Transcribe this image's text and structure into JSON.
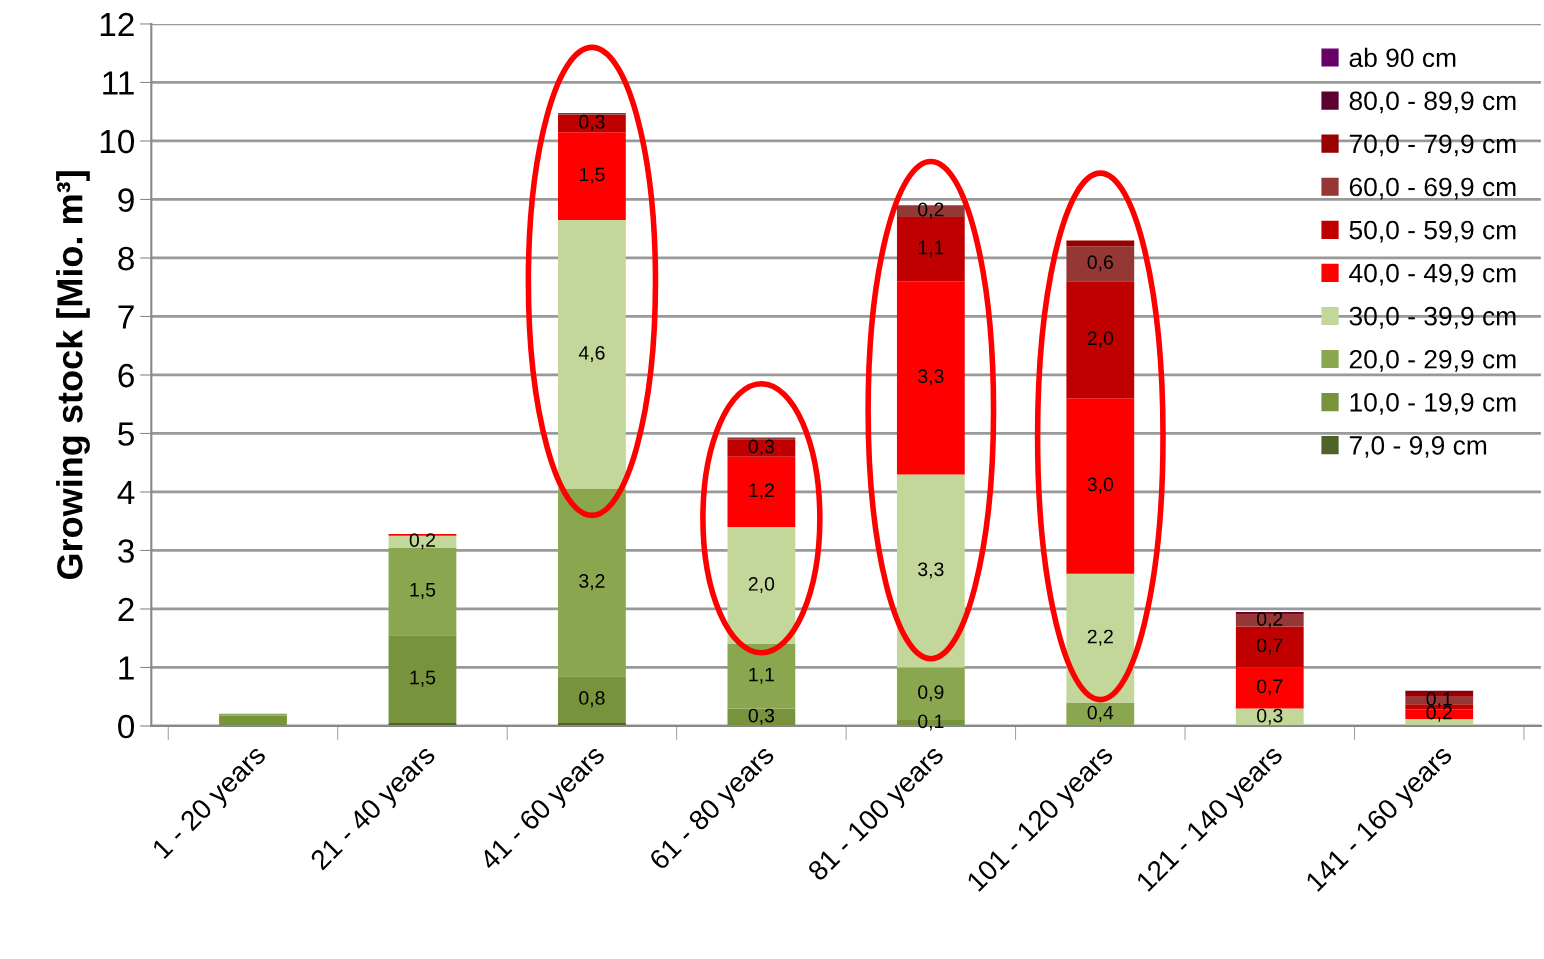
{
  "chart_data": {
    "type": "bar",
    "stacked": true,
    "ylabel": "Growing stock [Mio. m³]",
    "categories": [
      "1 - 20 years",
      "21 - 40 years",
      "41 - 60 years",
      "61 - 80 years",
      "81 - 100 years",
      "101 - 120 years",
      "121 - 140 years",
      "141 - 160 years"
    ],
    "ylim": [
      0,
      12
    ],
    "yticks": [
      0,
      1,
      2,
      3,
      4,
      5,
      6,
      7,
      8,
      9,
      10,
      11,
      12
    ],
    "grid": "y",
    "legend": "top right",
    "series": [
      {
        "name": "7,0 - 9,9 cm",
        "color": "#4f6228",
        "values": [
          0,
          0.05,
          0.05,
          0,
          0,
          0,
          0,
          0
        ]
      },
      {
        "name": "10,0 - 19,9 cm",
        "color": "#77933c",
        "values": [
          0.18,
          1.5,
          0.8,
          0.3,
          0.1,
          0,
          0,
          0
        ],
        "value_labels": [
          null,
          "1,5",
          "0,8",
          "0,3",
          "0,1",
          null,
          null,
          null
        ]
      },
      {
        "name": "20,0 - 29,9 cm",
        "color": "#8aa64f",
        "values": [
          0.03,
          1.5,
          3.2,
          1.1,
          0.9,
          0.4,
          null,
          0
        ],
        "value_labels": [
          null,
          "1,5",
          "3,2",
          "1,1",
          "0,9",
          "0,4",
          null,
          null
        ]
      },
      {
        "name": "30,0 - 39,9 cm",
        "color": "#c4d79b",
        "values": [
          0,
          0.2,
          4.6,
          2.0,
          3.3,
          2.2,
          0.3,
          0.12
        ],
        "value_labels": [
          null,
          "0,2",
          "4,6",
          "2,0",
          "3,3",
          "2,2",
          "0,3",
          null
        ]
      },
      {
        "name": "40,0 - 49,9 cm",
        "color": "#ff0000",
        "values": [
          0,
          0.03,
          1.5,
          1.2,
          3.3,
          3.0,
          0.7,
          0.16
        ],
        "value_labels": [
          null,
          null,
          "1,5",
          "1,2",
          "3,3",
          "3,0",
          "0,7",
          "0,2"
        ]
      },
      {
        "name": "50,0 - 59,9 cm",
        "color": "#c00000",
        "values": [
          0,
          0,
          0.3,
          0.3,
          1.1,
          2.0,
          0.7,
          0.09
        ],
        "value_labels": [
          null,
          null,
          "0,3",
          "0,3",
          "1,1",
          "2,0",
          "0,7",
          null
        ]
      },
      {
        "name": "60,0 - 69,9 cm",
        "color": "#953735",
        "values": [
          0,
          0,
          0.03,
          0.03,
          0.2,
          0.6,
          0.2,
          0.13
        ],
        "value_labels": [
          null,
          null,
          null,
          null,
          "0,2",
          "0,6",
          "0,2",
          "0,1"
        ]
      },
      {
        "name": "70,0 - 79,9 cm",
        "color": "#990000",
        "values": [
          0,
          0,
          0,
          0,
          null,
          0.1,
          0.03,
          0.08
        ]
      },
      {
        "name": "80,0 - 89,9 cm",
        "color": "#5c0030",
        "values": [
          0,
          0,
          0,
          0,
          0,
          0,
          0.02,
          0
        ]
      },
      {
        "name": "ab 90 cm",
        "color": "#660066",
        "values": [
          0,
          0,
          0,
          0,
          0,
          0,
          0,
          0.02
        ]
      }
    ]
  }
}
